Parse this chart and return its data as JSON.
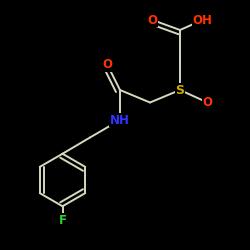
{
  "background_color": "#000000",
  "bond_color": "#d8d8c0",
  "atom_colors": {
    "O": "#ff3300",
    "S": "#ccaa00",
    "N": "#3333ff",
    "F": "#33cc33",
    "C": "#d8d8c0"
  },
  "figsize": [
    2.5,
    2.5
  ],
  "dpi": 100,
  "line_width": 1.4,
  "font_size": 8.5
}
